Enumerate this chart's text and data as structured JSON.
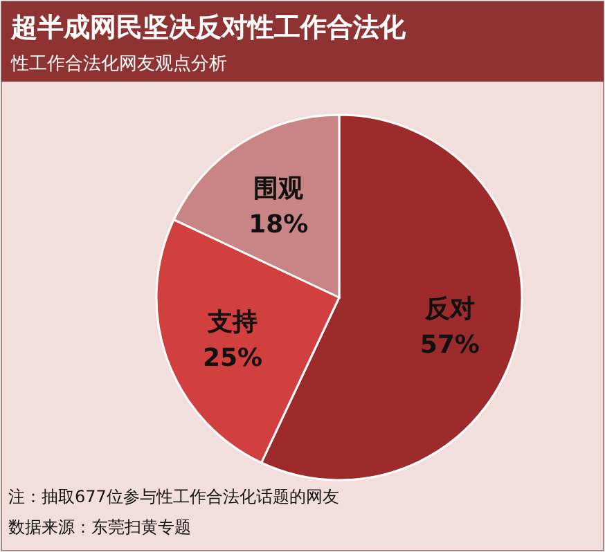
{
  "chart_data": {
    "type": "pie",
    "title": "超半成网民坚决反对性工作合法化",
    "subtitle": "性工作合法化网友观点分析",
    "categories": [
      "反对",
      "支持",
      "围观"
    ],
    "values": [
      57,
      25,
      18
    ],
    "colors": [
      "#9e2b2b",
      "#d23f3f",
      "#c98585"
    ],
    "value_labels": [
      "57%",
      "25%",
      "18%"
    ],
    "annotations": [
      "注：抽取677位参与性工作合法化话题的网友",
      "数据来源：东莞扫黄专题"
    ]
  }
}
